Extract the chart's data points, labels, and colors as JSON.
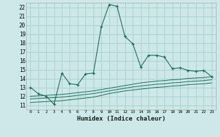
{
  "title": "",
  "xlabel": "Humidex (Indice chaleur)",
  "bg_color": "#cce8e8",
  "grid_color": "#aacccc",
  "line_color": "#1a6b5a",
  "xlim": [
    -0.5,
    23.5
  ],
  "ylim": [
    10.5,
    22.5
  ],
  "yticks": [
    11,
    12,
    13,
    14,
    15,
    16,
    17,
    18,
    19,
    20,
    21,
    22
  ],
  "xticks": [
    0,
    1,
    2,
    3,
    4,
    5,
    6,
    7,
    8,
    9,
    10,
    11,
    12,
    13,
    14,
    15,
    16,
    17,
    18,
    19,
    20,
    21,
    22,
    23
  ],
  "main_line_x": [
    0,
    1,
    2,
    3,
    4,
    5,
    6,
    7,
    8,
    9,
    10,
    11,
    12,
    13,
    14,
    15,
    16,
    17,
    18,
    19,
    20,
    21,
    22,
    23
  ],
  "main_line_y": [
    13.0,
    12.3,
    12.0,
    11.1,
    14.6,
    13.4,
    13.3,
    14.5,
    14.6,
    19.8,
    22.3,
    22.1,
    18.7,
    17.9,
    15.3,
    16.6,
    16.6,
    16.4,
    15.1,
    15.2,
    14.9,
    14.8,
    14.9,
    14.2
  ],
  "lower_line1_y": [
    12.0,
    12.05,
    12.1,
    12.15,
    12.2,
    12.3,
    12.4,
    12.5,
    12.6,
    12.75,
    12.9,
    13.05,
    13.2,
    13.35,
    13.5,
    13.6,
    13.7,
    13.75,
    13.85,
    13.9,
    14.0,
    14.05,
    14.1,
    14.2
  ],
  "lower_line2_y": [
    11.7,
    11.75,
    11.8,
    11.85,
    11.9,
    12.0,
    12.1,
    12.2,
    12.3,
    12.45,
    12.6,
    12.75,
    12.9,
    13.05,
    13.15,
    13.25,
    13.35,
    13.4,
    13.5,
    13.55,
    13.65,
    13.7,
    13.75,
    13.85
  ],
  "lower_line3_y": [
    11.3,
    11.35,
    11.4,
    11.45,
    11.5,
    11.6,
    11.7,
    11.8,
    11.9,
    12.1,
    12.3,
    12.45,
    12.6,
    12.7,
    12.8,
    12.9,
    13.0,
    13.05,
    13.15,
    13.2,
    13.3,
    13.35,
    13.4,
    13.5
  ]
}
